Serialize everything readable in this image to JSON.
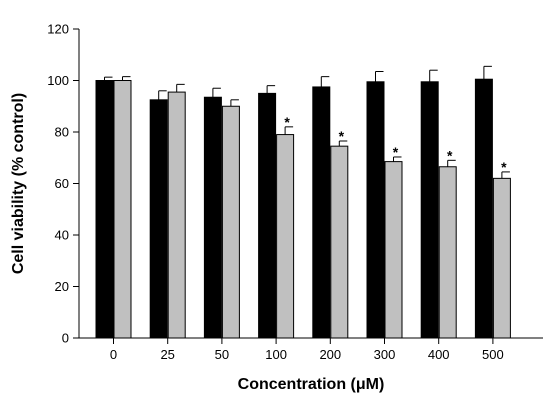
{
  "chart_data": {
    "type": "bar",
    "title": "",
    "xlabel": "Concentration (μM)",
    "ylabel": "Cell viability (% control)",
    "categories": [
      "0",
      "25",
      "50",
      "100",
      "200",
      "300",
      "400",
      "500"
    ],
    "ylim": [
      0,
      120
    ],
    "yticks": [
      0,
      20,
      40,
      60,
      80,
      100,
      120
    ],
    "grid": false,
    "legend": false,
    "series": [
      {
        "color": "#000000",
        "values": [
          100,
          92.5,
          93.5,
          95,
          97.5,
          99.5,
          99.5,
          100.5
        ],
        "errors": [
          1.3,
          3.5,
          3.5,
          3,
          4,
          4,
          4.5,
          5
        ]
      },
      {
        "color": "#c0c0c0",
        "values": [
          100,
          95.5,
          90,
          79,
          74.5,
          68.5,
          66.5,
          62
        ],
        "errors": [
          1.5,
          3,
          2.5,
          3,
          2,
          1.8,
          2.5,
          2.5
        ],
        "significance": [
          "",
          "",
          "",
          "*",
          "*",
          "*",
          "*",
          "*"
        ]
      }
    ]
  }
}
